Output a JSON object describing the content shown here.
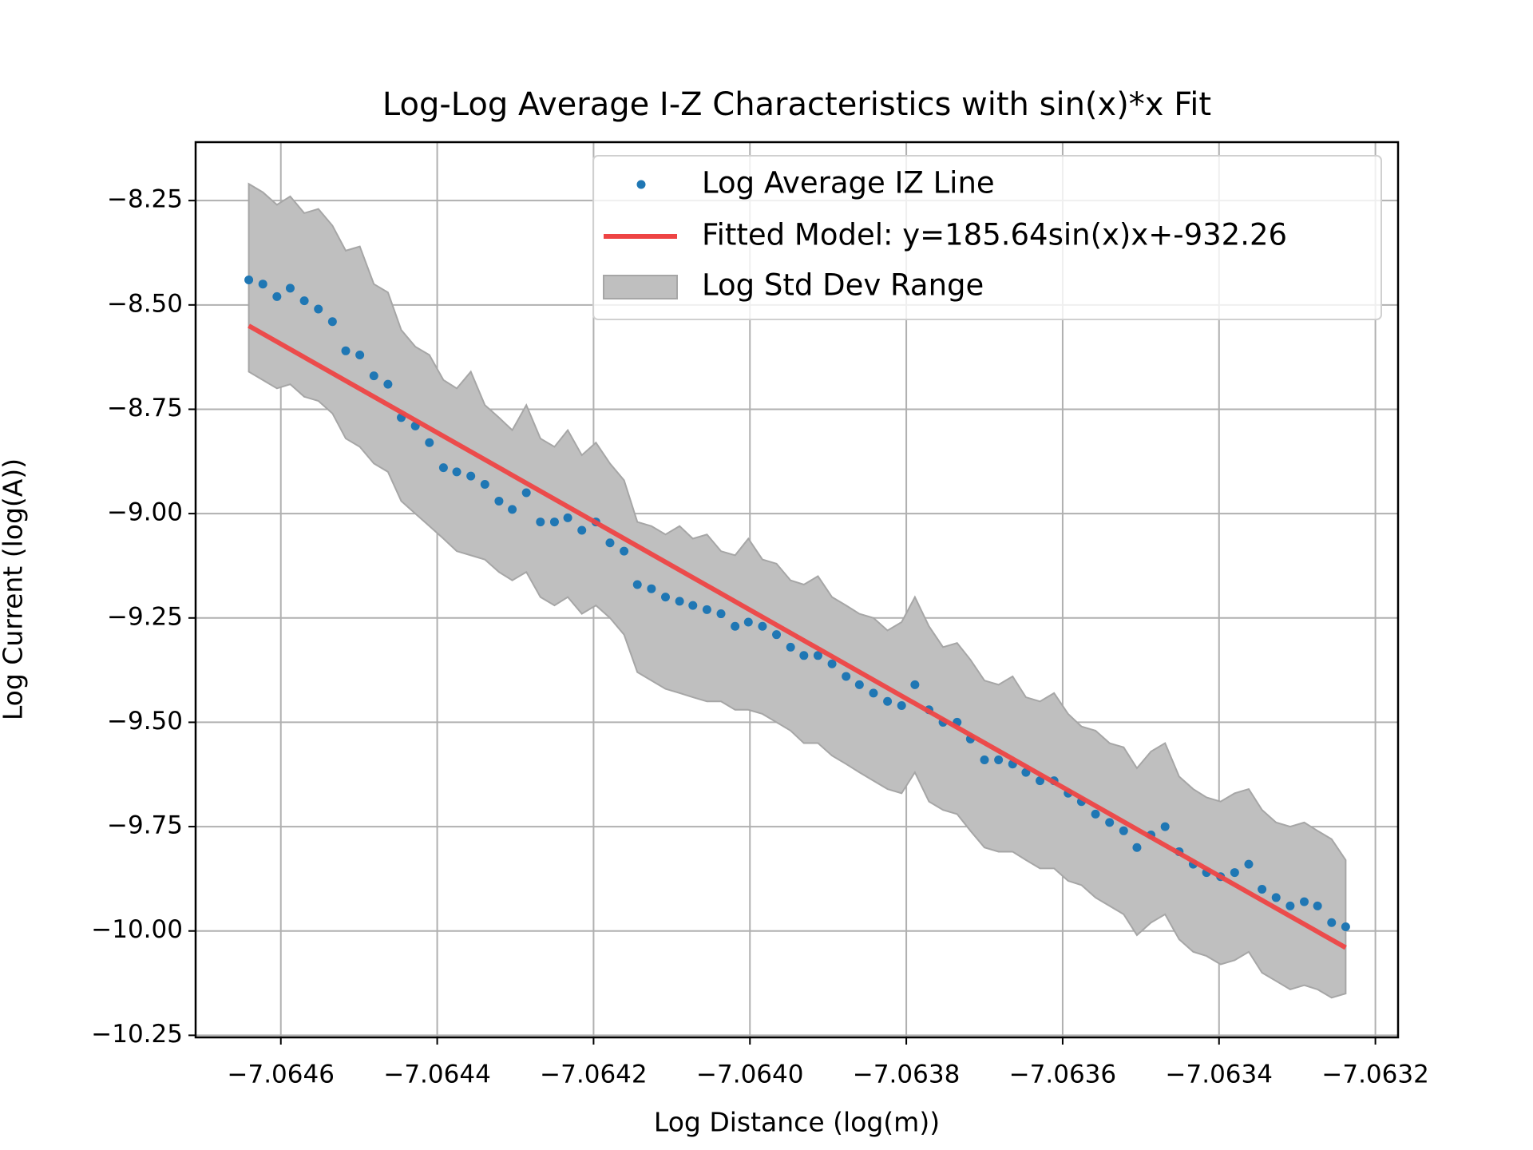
{
  "chart_data": {
    "type": "scatter",
    "title": "Log-Log Average I-Z Characteristics with sin(x)*x Fit",
    "xlabel": "Log Distance (log(m))",
    "ylabel": "Log Current (log(A))",
    "xlim": [
      -7.064709,
      -7.063171
    ],
    "ylim": [
      -10.255,
      -8.11
    ],
    "xticks": [
      {
        "value": -7.0646,
        "label": "−7.0646"
      },
      {
        "value": -7.0644,
        "label": "−7.0644"
      },
      {
        "value": -7.0642,
        "label": "−7.0642"
      },
      {
        "value": -7.064,
        "label": "−7.0640"
      },
      {
        "value": -7.0638,
        "label": "−7.0638"
      },
      {
        "value": -7.0636,
        "label": "−7.0636"
      },
      {
        "value": -7.0634,
        "label": "−7.0634"
      },
      {
        "value": -7.0632,
        "label": "−7.0632"
      }
    ],
    "yticks": [
      {
        "value": -8.25,
        "label": "−8.25"
      },
      {
        "value": -8.5,
        "label": "−8.50"
      },
      {
        "value": -8.75,
        "label": "−8.75"
      },
      {
        "value": -9,
        "label": "−9.00"
      },
      {
        "value": -9.25,
        "label": "−9.25"
      },
      {
        "value": -9.5,
        "label": "−9.50"
      },
      {
        "value": -9.75,
        "label": "−9.75"
      },
      {
        "value": -10,
        "label": "−10.00"
      },
      {
        "value": -10.25,
        "label": "−10.25"
      }
    ],
    "grid": true,
    "legend": "upper right",
    "x": [
      -7.064641,
      -7.064623,
      -7.064605,
      -7.064588,
      -7.06457,
      -7.064552,
      -7.064534,
      -7.064517,
      -7.064499,
      -7.064481,
      -7.064463,
      -7.064446,
      -7.064428,
      -7.06441,
      -7.064392,
      -7.064375,
      -7.064357,
      -7.064339,
      -7.064321,
      -7.064304,
      -7.064286,
      -7.064268,
      -7.06425,
      -7.064233,
      -7.064215,
      -7.064197,
      -7.064179,
      -7.064161,
      -7.064144,
      -7.064126,
      -7.064108,
      -7.06409,
      -7.064073,
      -7.064055,
      -7.064037,
      -7.064019,
      -7.064002,
      -7.063984,
      -7.063966,
      -7.063948,
      -7.063931,
      -7.063913,
      -7.063895,
      -7.063877,
      -7.06386,
      -7.063842,
      -7.063824,
      -7.063806,
      -7.063789,
      -7.063771,
      -7.063753,
      -7.063735,
      -7.063718,
      -7.0637,
      -7.063682,
      -7.063664,
      -7.063647,
      -7.063629,
      -7.063611,
      -7.063593,
      -7.063576,
      -7.063558,
      -7.06354,
      -7.063522,
      -7.063505,
      -7.063487,
      -7.063469,
      -7.063451,
      -7.063433,
      -7.063416,
      -7.063398,
      -7.06338,
      -7.063362,
      -7.063345,
      -7.063327,
      -7.063309,
      -7.063291,
      -7.063274,
      -7.063256,
      -7.063238
    ],
    "series": [
      {
        "name": "Log Average IZ Line",
        "color": "#1f77b4",
        "values": [
          -8.44,
          -8.45,
          -8.48,
          -8.46,
          -8.49,
          -8.51,
          -8.54,
          -8.61,
          -8.62,
          -8.67,
          -8.69,
          -8.77,
          -8.79,
          -8.83,
          -8.89,
          -8.9,
          -8.91,
          -8.93,
          -8.97,
          -8.99,
          -8.95,
          -9.02,
          -9.02,
          -9.01,
          -9.04,
          -9.02,
          -9.07,
          -9.09,
          -9.17,
          -9.18,
          -9.2,
          -9.21,
          -9.22,
          -9.23,
          -9.24,
          -9.27,
          -9.26,
          -9.27,
          -9.29,
          -9.32,
          -9.34,
          -9.34,
          -9.36,
          -9.39,
          -9.41,
          -9.43,
          -9.45,
          -9.46,
          -9.41,
          -9.47,
          -9.5,
          -9.5,
          -9.54,
          -9.59,
          -9.59,
          -9.6,
          -9.62,
          -9.64,
          -9.64,
          -9.67,
          -9.69,
          -9.72,
          -9.74,
          -9.76,
          -9.8,
          -9.77,
          -9.75,
          -9.81,
          -9.84,
          -9.86,
          -9.87,
          -9.86,
          -9.84,
          -9.9,
          -9.92,
          -9.94,
          -9.93,
          -9.94,
          -9.98,
          -9.99
        ]
      }
    ],
    "fit": {
      "name": "Fitted Model: y=185.64sin(x)x+-932.26",
      "color": "#ee4444",
      "x": [
        -7.064641,
        -7.063238
      ],
      "values": [
        -8.55,
        -10.04
      ]
    },
    "band": {
      "name": "Log Std Dev Range",
      "color": "#bfbfbf",
      "edge_color": "#a6a6a6",
      "upper": [
        -8.21,
        -8.23,
        -8.26,
        -8.24,
        -8.28,
        -8.27,
        -8.31,
        -8.37,
        -8.36,
        -8.45,
        -8.47,
        -8.56,
        -8.6,
        -8.62,
        -8.68,
        -8.7,
        -8.66,
        -8.74,
        -8.77,
        -8.8,
        -8.74,
        -8.82,
        -8.84,
        -8.8,
        -8.86,
        -8.83,
        -8.88,
        -8.92,
        -9.02,
        -9.03,
        -9.05,
        -9.03,
        -9.06,
        -9.05,
        -9.09,
        -9.1,
        -9.06,
        -9.11,
        -9.12,
        -9.16,
        -9.17,
        -9.15,
        -9.2,
        -9.22,
        -9.24,
        -9.25,
        -9.28,
        -9.26,
        -9.2,
        -9.27,
        -9.32,
        -9.31,
        -9.35,
        -9.4,
        -9.41,
        -9.39,
        -9.44,
        -9.45,
        -9.43,
        -9.48,
        -9.51,
        -9.52,
        -9.55,
        -9.56,
        -9.61,
        -9.57,
        -9.55,
        -9.63,
        -9.66,
        -9.68,
        -9.69,
        -9.67,
        -9.66,
        -9.71,
        -9.74,
        -9.75,
        -9.74,
        -9.76,
        -9.78,
        -9.83
      ],
      "lower": [
        -8.66,
        -8.68,
        -8.7,
        -8.69,
        -8.72,
        -8.73,
        -8.76,
        -8.82,
        -8.84,
        -8.88,
        -8.9,
        -8.97,
        -9.0,
        -9.03,
        -9.06,
        -9.09,
        -9.1,
        -9.11,
        -9.14,
        -9.16,
        -9.14,
        -9.2,
        -9.22,
        -9.2,
        -9.24,
        -9.22,
        -9.25,
        -9.29,
        -9.38,
        -9.4,
        -9.42,
        -9.43,
        -9.44,
        -9.45,
        -9.45,
        -9.47,
        -9.47,
        -9.48,
        -9.5,
        -9.52,
        -9.55,
        -9.55,
        -9.58,
        -9.6,
        -9.62,
        -9.64,
        -9.66,
        -9.67,
        -9.62,
        -9.69,
        -9.71,
        -9.72,
        -9.76,
        -9.8,
        -9.81,
        -9.81,
        -9.83,
        -9.85,
        -9.85,
        -9.88,
        -9.89,
        -9.92,
        -9.94,
        -9.96,
        -10.01,
        -9.98,
        -9.96,
        -10.02,
        -10.05,
        -10.06,
        -10.08,
        -10.07,
        -10.05,
        -10.1,
        -10.12,
        -10.14,
        -10.13,
        -10.14,
        -10.16,
        -10.15
      ]
    }
  }
}
